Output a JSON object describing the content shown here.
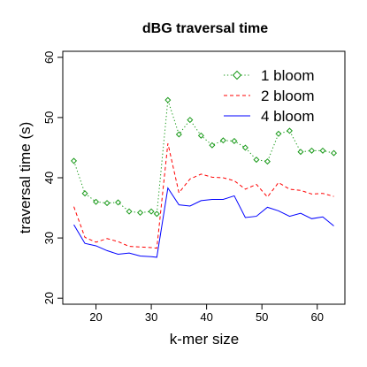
{
  "chart_data": {
    "type": "line",
    "title": "dBG traversal time",
    "xlabel": "k-mer size",
    "ylabel": "traversal time (s)",
    "xlim": [
      14,
      65
    ],
    "ylim": [
      19,
      61
    ],
    "xticks": [
      20,
      30,
      40,
      50,
      60
    ],
    "yticks": [
      20,
      30,
      40,
      50,
      60
    ],
    "grid": false,
    "legend_position": "top-right",
    "x": [
      16,
      18,
      20,
      22,
      24,
      26,
      28,
      30,
      31,
      33,
      35,
      37,
      39,
      41,
      43,
      45,
      47,
      49,
      51,
      53,
      55,
      57,
      59,
      61,
      63
    ],
    "series": [
      {
        "name": "1 bloom",
        "color": "#1a9a1a",
        "line_style": "dotted",
        "marker": "diamond",
        "values": [
          42.8,
          37.4,
          36.0,
          35.8,
          35.9,
          34.4,
          34.2,
          34.4,
          34.0,
          52.9,
          47.2,
          49.6,
          47.0,
          45.4,
          46.2,
          46.1,
          45.0,
          43.0,
          42.7,
          47.3,
          47.8,
          44.3,
          44.5,
          44.5,
          44.1
        ]
      },
      {
        "name": "2 bloom",
        "color": "#ff0000",
        "line_style": "dashed",
        "values": [
          35.2,
          30.1,
          29.3,
          29.9,
          29.4,
          28.6,
          28.5,
          28.4,
          28.3,
          45.7,
          37.5,
          39.8,
          40.6,
          40.1,
          40.0,
          39.5,
          38.1,
          38.9,
          36.8,
          39.2,
          38.1,
          37.9,
          37.3,
          37.4,
          36.9
        ]
      },
      {
        "name": "4 bloom",
        "color": "#0000ff",
        "line_style": "solid",
        "values": [
          32.2,
          29.1,
          28.7,
          27.9,
          27.3,
          27.5,
          27.0,
          26.9,
          26.8,
          38.3,
          35.5,
          35.3,
          36.2,
          36.4,
          36.4,
          37.0,
          33.4,
          33.6,
          35.1,
          34.5,
          33.6,
          34.1,
          33.2,
          33.5,
          32.0
        ]
      }
    ]
  }
}
